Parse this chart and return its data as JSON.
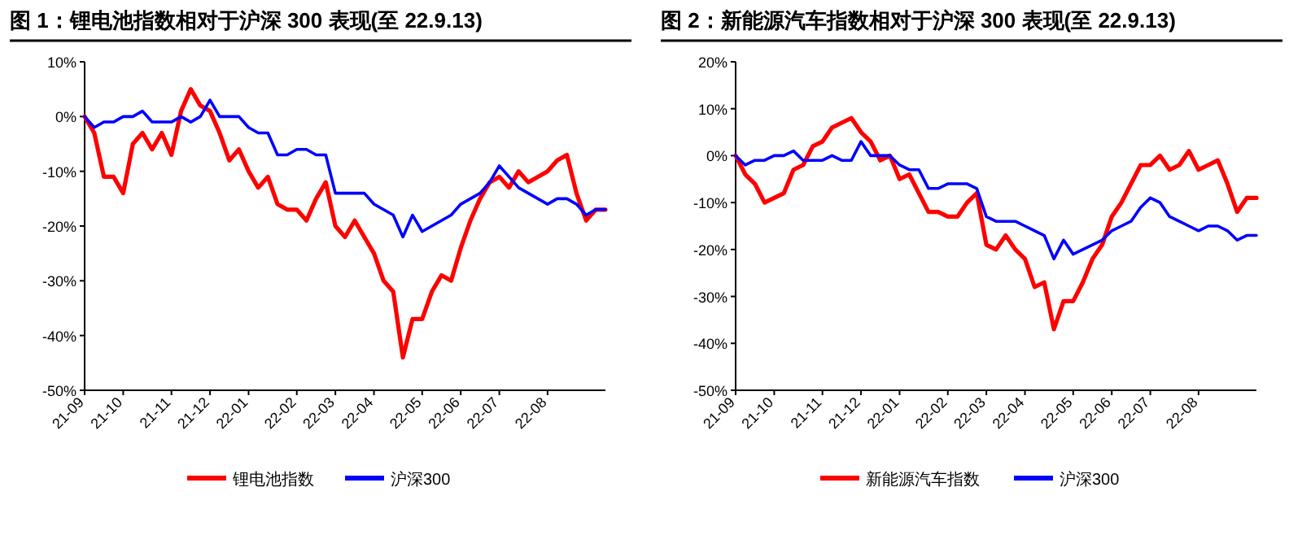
{
  "chart_data": [
    {
      "type": "line",
      "title": "图 1：锂电池指数相对于沪深 300 表现(至 22.9.13)",
      "legend": "bottom",
      "categories": [
        "21-09",
        null,
        null,
        null,
        "21-10",
        null,
        null,
        null,
        null,
        "21-11",
        null,
        null,
        null,
        "21-12",
        null,
        null,
        null,
        "22-01",
        null,
        null,
        null,
        null,
        "22-02",
        null,
        null,
        null,
        "22-03",
        null,
        null,
        null,
        "22-04",
        null,
        null,
        null,
        null,
        "22-05",
        null,
        null,
        null,
        "22-06",
        null,
        null,
        null,
        "22-07",
        null,
        null,
        null,
        null,
        "22-08",
        null,
        null,
        null,
        null,
        null,
        null
      ],
      "ylim": [
        -50,
        10
      ],
      "yticks": [
        {
          "value": -50,
          "label": "-50%"
        },
        {
          "value": -40,
          "label": "-40%"
        },
        {
          "value": -30,
          "label": "-30%"
        },
        {
          "value": -20,
          "label": "-20%"
        },
        {
          "value": -10,
          "label": "-10%"
        },
        {
          "value": 0,
          "label": "0%"
        },
        {
          "value": 10,
          "label": "10%"
        }
      ],
      "series": [
        {
          "name": "锂电池指数",
          "color": "#ff0000",
          "values": [
            0,
            -3,
            -11,
            -11,
            -14,
            -5,
            -3,
            -6,
            -3,
            -7,
            1,
            5,
            2,
            1,
            -3,
            -8,
            -6,
            -10,
            -13,
            -11,
            -16,
            -17,
            -17,
            -19,
            -15,
            -12,
            -20,
            -22,
            -19,
            -22,
            -25,
            -30,
            -32,
            -44,
            -37,
            -37,
            -32,
            -29,
            -30,
            -24,
            -19,
            -15,
            -12,
            -11,
            -13,
            -10,
            -12,
            -11,
            -10,
            -8,
            -7,
            -14,
            -19,
            -17,
            -17
          ]
        },
        {
          "name": "沪深300",
          "color": "#0000ff",
          "values": [
            0,
            -2,
            -1,
            -1,
            0,
            0,
            1,
            -1,
            -1,
            -1,
            0,
            -1,
            0,
            3,
            0,
            0,
            0,
            -2,
            -3,
            -3,
            -7,
            -7,
            -6,
            -6,
            -7,
            -7,
            -14,
            -14,
            -14,
            -14,
            -16,
            -17,
            -18,
            -22,
            -18,
            -21,
            -20,
            -19,
            -18,
            -16,
            -15,
            -14,
            -12,
            -9,
            -11,
            -13,
            -14,
            -15,
            -16,
            -15,
            -15,
            -16,
            -18,
            -17,
            -17
          ]
        }
      ]
    },
    {
      "type": "line",
      "title": "图 2：新能源汽车指数相对于沪深 300 表现(至 22.9.13)",
      "legend": "bottom",
      "categories": [
        "21-09",
        null,
        null,
        null,
        "21-10",
        null,
        null,
        null,
        null,
        "21-11",
        null,
        null,
        null,
        "21-12",
        null,
        null,
        null,
        "22-01",
        null,
        null,
        null,
        null,
        "22-02",
        null,
        null,
        null,
        "22-03",
        null,
        null,
        null,
        "22-04",
        null,
        null,
        null,
        null,
        "22-05",
        null,
        null,
        null,
        "22-06",
        null,
        null,
        null,
        "22-07",
        null,
        null,
        null,
        null,
        "22-08",
        null,
        null,
        null,
        null,
        null,
        null
      ],
      "ylim": [
        -50,
        20
      ],
      "yticks": [
        {
          "value": -50,
          "label": "-50%"
        },
        {
          "value": -40,
          "label": "-40%"
        },
        {
          "value": -30,
          "label": "-30%"
        },
        {
          "value": -20,
          "label": "-20%"
        },
        {
          "value": -10,
          "label": "-10%"
        },
        {
          "value": 0,
          "label": "0%"
        },
        {
          "value": 10,
          "label": "10%"
        },
        {
          "value": 20,
          "label": "20%"
        }
      ],
      "series": [
        {
          "name": "新能源汽车指数",
          "color": "#ff0000",
          "values": [
            0,
            -4,
            -6,
            -10,
            -9,
            -8,
            -3,
            -2,
            2,
            3,
            6,
            7,
            8,
            5,
            3,
            -1,
            0,
            -5,
            -4,
            -8,
            -12,
            -12,
            -13,
            -13,
            -10,
            -8,
            -19,
            -20,
            -17,
            -20,
            -22,
            -28,
            -27,
            -37,
            -31,
            -31,
            -27,
            -22,
            -19,
            -13,
            -10,
            -6,
            -2,
            -2,
            0,
            -3,
            -2,
            1,
            -3,
            -2,
            -1,
            -6,
            -12,
            -9,
            -9
          ]
        },
        {
          "name": "沪深300",
          "color": "#0000ff",
          "values": [
            0,
            -2,
            -1,
            -1,
            0,
            0,
            1,
            -1,
            -1,
            -1,
            0,
            -1,
            -1,
            3,
            0,
            0,
            0,
            -2,
            -3,
            -3,
            -7,
            -7,
            -6,
            -6,
            -6,
            -7,
            -13,
            -14,
            -14,
            -14,
            -15,
            -16,
            -17,
            -22,
            -18,
            -21,
            -20,
            -19,
            -18,
            -16,
            -15,
            -14,
            -11,
            -9,
            -10,
            -13,
            -14,
            -15,
            -16,
            -15,
            -15,
            -16,
            -18,
            -17,
            -17
          ]
        }
      ]
    }
  ]
}
